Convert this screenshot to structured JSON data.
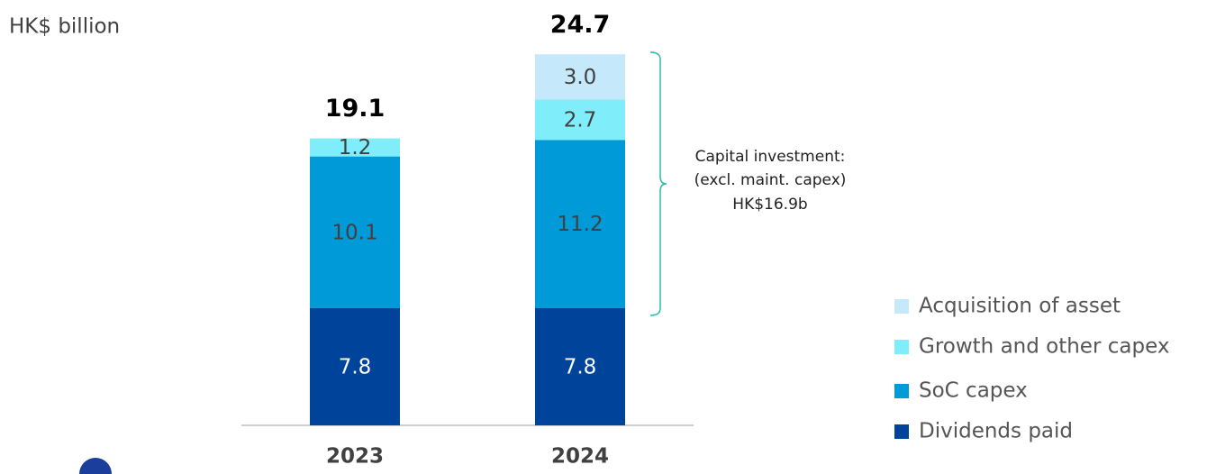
{
  "chart_data": {
    "type": "stacked-bar",
    "y_label": "HK$ billion",
    "categories": [
      "2023",
      "2024"
    ],
    "totals": [
      19.1,
      24.7
    ],
    "series": [
      {
        "name": "Dividends paid",
        "color": "#00439a",
        "values": [
          7.8,
          7.8
        ],
        "value_labels": [
          "7.8",
          "7.8"
        ]
      },
      {
        "name": "SoC capex",
        "color": "#009ad9",
        "values": [
          10.1,
          11.2
        ],
        "value_labels": [
          "10.1",
          "11.2"
        ]
      },
      {
        "name": "Growth and other capex",
        "color": "#80eefa",
        "values": [
          1.2,
          2.7
        ],
        "value_labels": [
          "1.2",
          "2.7"
        ]
      },
      {
        "name": "Acquisition of asset",
        "color": "#c5e9fb",
        "values": [
          null,
          3.0
        ],
        "value_labels": [
          null,
          "3.0"
        ]
      }
    ],
    "annotation": [
      "Capital investment:",
      "(excl. maint. capex)",
      "HK$16.9b"
    ],
    "legend": "lower right"
  }
}
